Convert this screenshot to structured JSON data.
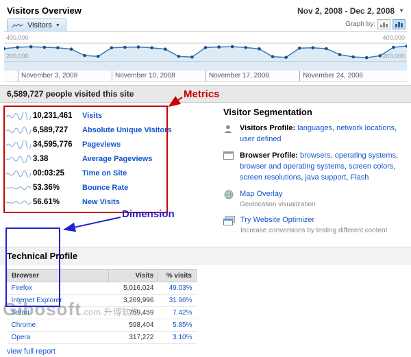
{
  "header": {
    "title": "Visitors Overview",
    "date_range": "Nov 2, 2008 - Dec 2, 2008"
  },
  "chart": {
    "tab_label": "Visitors",
    "graph_by_label": "Graph by:"
  },
  "chart_data": {
    "type": "line",
    "title": "Visitors",
    "x": [
      "Nov 2",
      "Nov 3",
      "Nov 4",
      "Nov 5",
      "Nov 6",
      "Nov 7",
      "Nov 8",
      "Nov 9",
      "Nov 10",
      "Nov 11",
      "Nov 12",
      "Nov 13",
      "Nov 14",
      "Nov 15",
      "Nov 16",
      "Nov 17",
      "Nov 18",
      "Nov 19",
      "Nov 20",
      "Nov 21",
      "Nov 22",
      "Nov 23",
      "Nov 24",
      "Nov 25",
      "Nov 26",
      "Nov 27",
      "Nov 28",
      "Nov 29",
      "Nov 30",
      "Dec 1",
      "Dec 2"
    ],
    "values": [
      340000,
      355000,
      360000,
      355000,
      350000,
      335000,
      265000,
      255000,
      350000,
      355000,
      358000,
      350000,
      335000,
      255000,
      248000,
      352000,
      358000,
      362000,
      352000,
      338000,
      252000,
      245000,
      345000,
      350000,
      340000,
      275000,
      250000,
      242000,
      262000,
      355000,
      368000
    ],
    "ylim": [
      100000,
      520000
    ],
    "gridline_values": [
      200000,
      400000
    ],
    "y_axis_labels": [
      "400,000",
      "200,000"
    ],
    "tick_labels": [
      "November 3, 2008",
      "November 10, 2008",
      "November 17, 2008",
      "November 24, 2008"
    ],
    "tick_indices": [
      1,
      8,
      15,
      22
    ],
    "grid": true,
    "legend_position": "none",
    "line_color": "#3a78b5",
    "point_color": "#1c4f8f",
    "fill_color": "#dcebf6",
    "grid_color": "#c9c9c9"
  },
  "summary_text": "6,589,727 people visited this site",
  "metrics": [
    {
      "value": "10,231,461",
      "label": "Visits"
    },
    {
      "value": "6,589,727",
      "label": "Absolute Unique Visitors"
    },
    {
      "value": "34,595,776",
      "label": "Pageviews"
    },
    {
      "value": "3.38",
      "label": "Average Pageviews"
    },
    {
      "value": "00:03:25",
      "label": "Time on Site"
    },
    {
      "value": "53.36%",
      "label": "Bounce Rate"
    },
    {
      "value": "56.61%",
      "label": "New Visits"
    }
  ],
  "segmentation": {
    "title": "Visitor Segmentation",
    "visitors_profile_label": "Visitors Profile:",
    "visitors_profile_links": [
      "languages",
      "network locations",
      "user defined"
    ],
    "browser_profile_label": "Browser Profile:",
    "browser_profile_links": [
      "browsers",
      "operating systems",
      "browser and operating systems",
      "screen colors",
      "screen resolutions",
      "java support",
      "Flash"
    ],
    "map_overlay_label": "Map Overlay",
    "map_overlay_desc": "Geolocation visualization",
    "optimizer_label": "Try Website Optimizer",
    "optimizer_desc": "Increase conversions by testing different content"
  },
  "technical_profile": {
    "title": "Technical Profile",
    "columns": [
      "Browser",
      "Visits",
      "% visits"
    ],
    "rows": [
      {
        "browser": "Firefox",
        "visits": "5,016,024",
        "pct": "49.03%"
      },
      {
        "browser": "Internet Explorer",
        "visits": "3,269,996",
        "pct": "31.96%"
      },
      {
        "browser": "Safari",
        "visits": "759,459",
        "pct": "7.42%"
      },
      {
        "browser": "Chrome",
        "visits": "598,404",
        "pct": "5.85%"
      },
      {
        "browser": "Opera",
        "visits": "317,272",
        "pct": "3.10%"
      }
    ],
    "view_full_report": "view full report"
  },
  "annotations": {
    "metrics_label": "Metrics",
    "dimension_label": "Dimension",
    "red": "#cc0000",
    "blue": "#2222cc"
  },
  "watermark": {
    "main": "Gibosoft",
    "suffix": ".com",
    "cn": "升博软件"
  }
}
